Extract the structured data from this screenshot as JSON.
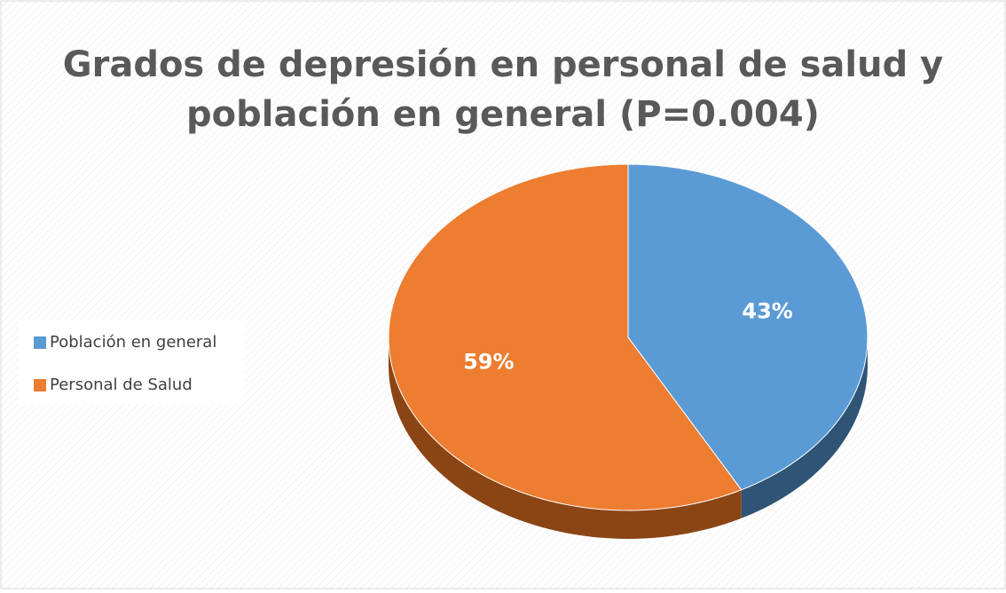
{
  "chart_data": {
    "type": "pie",
    "title": "Grados de depresión en personal de salud y población en general  (P=0.004)",
    "categories": [
      "Población en general",
      "Personal de Salud"
    ],
    "values": [
      43,
      59
    ],
    "value_labels": [
      "43%",
      "59%"
    ],
    "colors": [
      "#5b9bd5",
      "#ed7d31"
    ],
    "side_colors": [
      "#2f5476",
      "#8b4515"
    ],
    "legend": "left"
  }
}
